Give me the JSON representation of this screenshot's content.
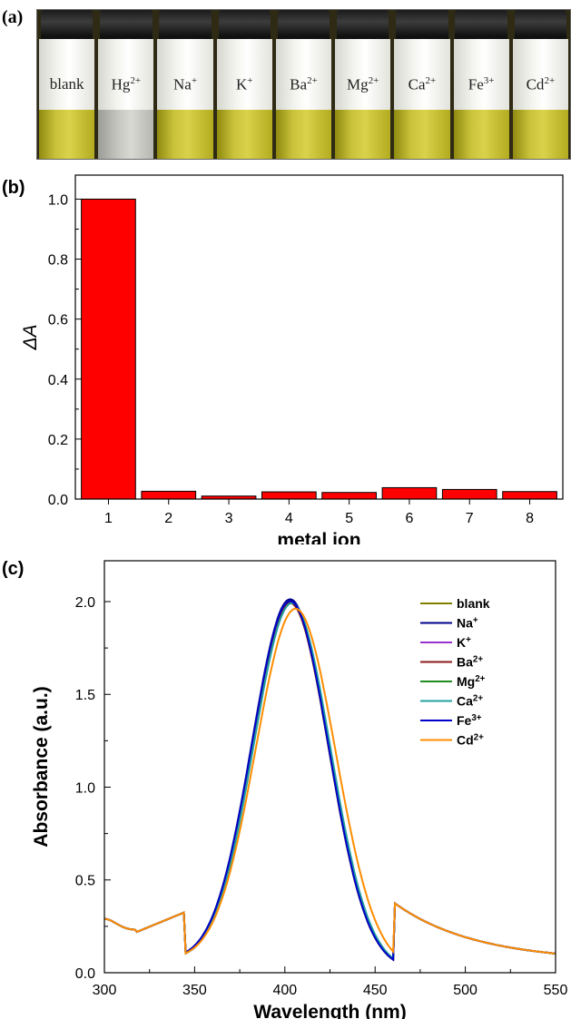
{
  "panel_a": {
    "label": "(a)",
    "vials": [
      {
        "name": "blank",
        "sup": "",
        "liquid": "yellow"
      },
      {
        "name": "Hg",
        "sup": "2+",
        "liquid": "clear"
      },
      {
        "name": "Na",
        "sup": "+",
        "liquid": "yellow"
      },
      {
        "name": "K",
        "sup": "+",
        "liquid": "yellow"
      },
      {
        "name": "Ba",
        "sup": "2+",
        "liquid": "yellow"
      },
      {
        "name": "Mg",
        "sup": "2+",
        "liquid": "yellow"
      },
      {
        "name": "Ca",
        "sup": "2+",
        "liquid": "yellow"
      },
      {
        "name": "Fe",
        "sup": "3+",
        "liquid": "yellow"
      },
      {
        "name": "Cd",
        "sup": "2+",
        "liquid": "yellow"
      }
    ]
  },
  "chart_data": [
    {
      "label": "(b)",
      "type": "bar",
      "categories": [
        "1",
        "2",
        "3",
        "4",
        "5",
        "6",
        "7",
        "8"
      ],
      "values": [
        1.0,
        0.026,
        0.01,
        0.024,
        0.022,
        0.038,
        0.032,
        0.025
      ],
      "xlabel": "metal ion",
      "ylabel": "ΔA",
      "ylim": [
        0,
        1.08
      ],
      "yticks": [
        "0.0",
        "0.2",
        "0.4",
        "0.6",
        "0.8",
        "1.0"
      ],
      "bar_color": "#ff0000"
    },
    {
      "label": "(c)",
      "type": "line",
      "xlabel": "Wavelength (nm)",
      "ylabel": "Absorbance (a.u.)",
      "xlim": [
        300,
        550
      ],
      "ylim": [
        0,
        2.22
      ],
      "xticks": [
        "300",
        "350",
        "400",
        "450",
        "500",
        "550"
      ],
      "yticks": [
        "0.0",
        "0.5",
        "1.0",
        "1.5",
        "2.0"
      ],
      "legend_position": "top-right",
      "x": [
        300,
        310,
        318,
        325,
        340,
        350,
        360,
        370,
        380,
        390,
        395,
        400,
        405,
        410,
        420,
        430,
        440,
        450,
        460,
        470,
        480,
        500,
        520,
        550
      ],
      "series": [
        {
          "name": "blank",
          "sup": "",
          "color": "#808000",
          "peak": 1.96,
          "peak_x": 403,
          "width": 1.0
        },
        {
          "name": "Na",
          "sup": "+",
          "color": "#00008b",
          "peak": 1.98,
          "peak_x": 403,
          "width": 1.0
        },
        {
          "name": "K",
          "sup": "+",
          "color": "#9932cc",
          "peak": 1.97,
          "peak_x": 403,
          "width": 1.0
        },
        {
          "name": "Ba",
          "sup": "2+",
          "color": "#8b1a1a",
          "peak": 1.96,
          "peak_x": 403,
          "width": 1.0
        },
        {
          "name": "Mg",
          "sup": "2+",
          "color": "#1e8c1e",
          "peak": 1.97,
          "peak_x": 403,
          "width": 1.0
        },
        {
          "name": "Ca",
          "sup": "2+",
          "color": "#20a0a0",
          "peak": 1.96,
          "peak_x": 404,
          "width": 1.0
        },
        {
          "name": "Fe",
          "sup": "3+",
          "color": "#0000cd",
          "peak": 1.97,
          "peak_x": 403,
          "width": 1.0
        },
        {
          "name": "Cd",
          "sup": "2+",
          "color": "#ff8c00",
          "peak": 1.93,
          "peak_x": 406,
          "width": 1.04
        }
      ]
    }
  ]
}
